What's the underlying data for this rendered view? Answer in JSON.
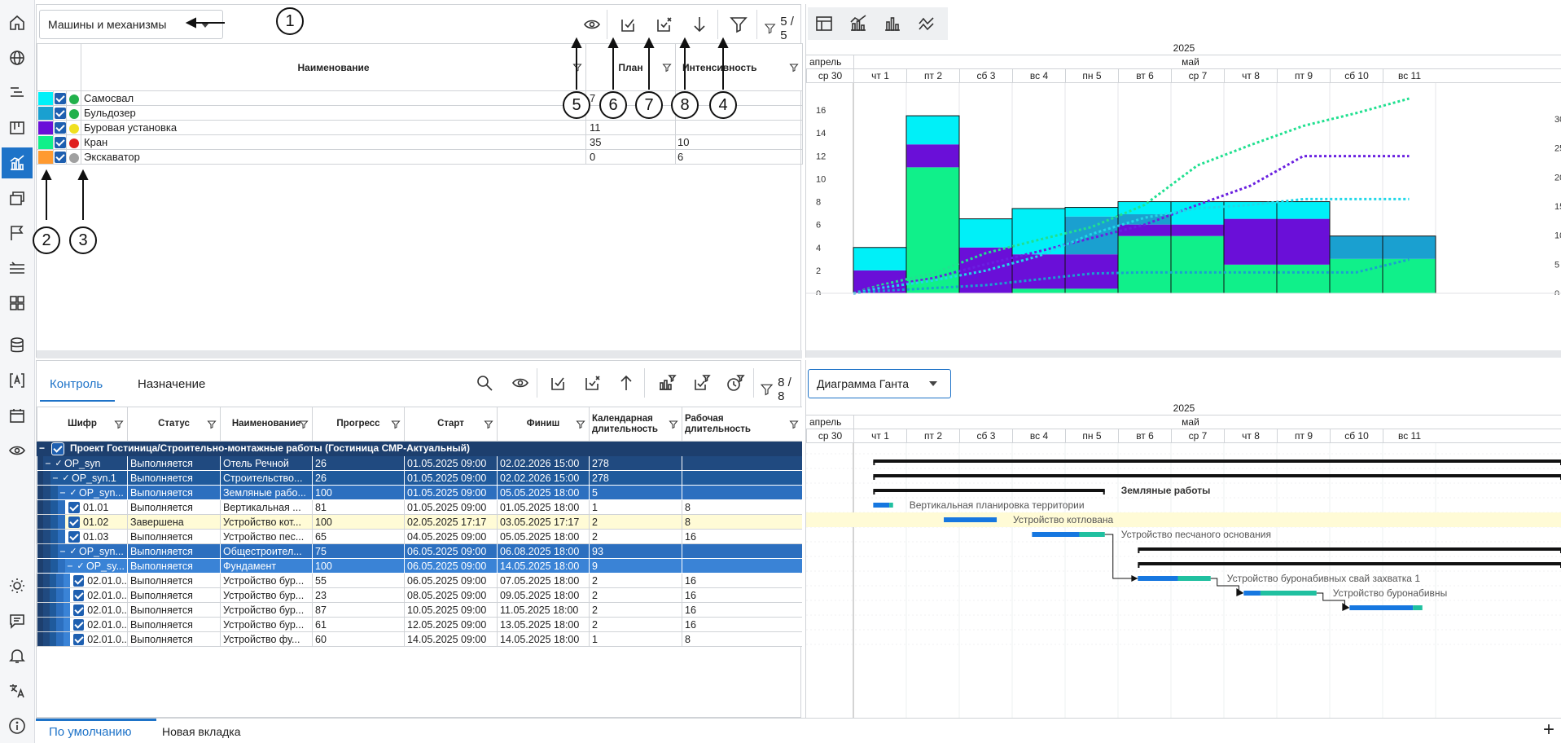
{
  "sidebar": {
    "icons": [
      "home-icon",
      "globe-icon",
      "list-tree-icon",
      "board-icon",
      "chart-analysis-icon",
      "windows-icon",
      "flag-icon",
      "lines-icon",
      "grid-icon",
      "database-icon",
      "text-bracket-icon",
      "calendar-icon",
      "eye-icon",
      "sun-icon",
      "comment-icon",
      "bell-icon",
      "translate-icon",
      "info-icon"
    ]
  },
  "resources": {
    "dropdown_value": "Машины и механизмы",
    "filter_count": "5 / 5",
    "headers": {
      "name": "Наименование",
      "plan": "План",
      "intensity": "Интенсивность"
    },
    "rows": [
      {
        "color": "#00f0f8",
        "status": "#22b14c",
        "name": "Самосвал",
        "plan": "7",
        "intensity": "8"
      },
      {
        "color": "#1aa0d0",
        "status": "#22b14c",
        "name": "Бульдозер",
        "plan": "",
        "intensity": "9"
      },
      {
        "color": "#6a0fd8",
        "status": "#f0e020",
        "name": "Буровая установка",
        "plan": "11",
        "intensity": ""
      },
      {
        "color": "#10f08a",
        "status": "#e02020",
        "name": "Кран",
        "plan": "35",
        "intensity": "10"
      },
      {
        "color": "#ff9a30",
        "status": "#a0a0a0",
        "name": "Экскаватор",
        "plan": "0",
        "intensity": "6"
      }
    ]
  },
  "callouts": [
    "1",
    "2",
    "3",
    "4",
    "5",
    "6",
    "7",
    "8"
  ],
  "timeline": {
    "year": "2025",
    "prev_month": "апрель",
    "month": "май",
    "days": [
      "ср 30",
      "чт 1",
      "пт 2",
      "сб 3",
      "вс 4",
      "пн 5",
      "вт 6",
      "ср 7",
      "чт 8",
      "пт 9",
      "сб 10",
      "вс 11"
    ]
  },
  "chart_data": {
    "type": "bar",
    "categories": [
      "ср 30",
      "чт 1",
      "пт 2",
      "сб 3",
      "вс 4",
      "пн 5",
      "вт 6",
      "ср 7",
      "чт 8",
      "пт 9",
      "сб 10",
      "вс 11"
    ],
    "series": [
      {
        "color": "#10f08a",
        "values": [
          0,
          0,
          11,
          0,
          0.4,
          0.4,
          5,
          5,
          2.5,
          2.5,
          3,
          3
        ]
      },
      {
        "color": "#6a0fd8",
        "values": [
          0,
          2,
          2,
          4,
          3,
          3,
          1,
          1,
          4,
          4,
          0,
          0
        ]
      },
      {
        "color": "#1aa0d0",
        "values": [
          0,
          0,
          0,
          0,
          0,
          3.3,
          0.9,
          0,
          0,
          0,
          2,
          2
        ]
      },
      {
        "color": "#00f0f8",
        "values": [
          0,
          2,
          2.5,
          2.5,
          4,
          0.8,
          1.1,
          2,
          1.5,
          1.5,
          0,
          0
        ]
      }
    ],
    "cumulative": [
      {
        "color": "#20e090",
        "values": [
          0,
          1.4,
          3.4,
          6.9,
          9.2,
          11.4,
          15.2,
          22,
          25.5,
          28.8,
          31,
          33.5
        ]
      },
      {
        "color": "#6a20e0",
        "values": [
          0,
          1.1,
          2.6,
          5,
          7.2,
          9.5,
          11.8,
          15.2,
          18.5,
          23.6,
          23.6,
          23.6
        ]
      },
      {
        "color": "#20d8e8",
        "values": [
          0,
          0.9,
          2.2,
          3.9,
          6.4,
          10.2,
          13,
          14.6,
          15.2,
          16.2,
          16.2,
          16.2
        ]
      },
      {
        "color": "#1aa0d0",
        "values": [
          0,
          0.4,
          0.9,
          1.4,
          2.4,
          3.4,
          3.6,
          3.6,
          3.6,
          3.6,
          3.6,
          5.8
        ]
      }
    ],
    "ylim": [
      0,
      17
    ],
    "y_ticks": [
      "0",
      "2",
      "4",
      "6",
      "8",
      "10",
      "12",
      "14",
      "16"
    ],
    "y2lim": [
      0,
      33.5
    ],
    "y2_ticks": [
      "0",
      "5",
      "10",
      "15",
      "20",
      "25",
      "30"
    ]
  },
  "works": {
    "tabs": [
      "Контроль",
      "Назначение"
    ],
    "filter_count": "8 / 8",
    "headers": [
      "Шифр",
      "Статус",
      "Наименование",
      "Прогресс",
      "Старт",
      "Финиш",
      "Календарная длительность",
      "Рабочая длительность"
    ],
    "rows": [
      {
        "level": 0,
        "type": "project",
        "code": "Проект Гостиница/Строительно-монтажные работы (Гостиница СМР-Актуальный)",
        "status": "",
        "name": "",
        "progress": "",
        "start": "",
        "finish": "",
        "cal": "",
        "work": ""
      },
      {
        "level": 1,
        "type": "group1",
        "code": "OP_syn",
        "status": "Выполняется",
        "name": "Отель Речной",
        "progress": "26",
        "start": "01.05.2025 09:00",
        "finish": "02.02.2026 15:00",
        "cal": "278",
        "work": ""
      },
      {
        "level": 2,
        "type": "group2",
        "code": "OP_syn.1",
        "status": "Выполняется",
        "name": "Строительство...",
        "progress": "26",
        "start": "01.05.2025 09:00",
        "finish": "02.02.2026 15:00",
        "cal": "278",
        "work": ""
      },
      {
        "level": 3,
        "type": "group3",
        "code": "OP_syn...",
        "status": "Выполняется",
        "name": "Земляные рабо...",
        "progress": "100",
        "start": "01.05.2025 09:00",
        "finish": "05.05.2025 18:00",
        "cal": "5",
        "work": ""
      },
      {
        "level": 4,
        "type": "task",
        "code": "01.01",
        "status": "Выполняется",
        "name": "Вертикальная ...",
        "progress": "81",
        "start": "01.05.2025 09:00",
        "finish": "01.05.2025 18:00",
        "cal": "1",
        "work": "8"
      },
      {
        "level": 4,
        "type": "done",
        "code": "01.02",
        "status": "Завершена",
        "name": "Устройство кот...",
        "progress": "100",
        "start": "02.05.2025 17:17",
        "finish": "03.05.2025 17:17",
        "cal": "2",
        "work": "8"
      },
      {
        "level": 4,
        "type": "task",
        "code": "01.03",
        "status": "Выполняется",
        "name": "Устройство пес...",
        "progress": "65",
        "start": "04.05.2025 09:00",
        "finish": "05.05.2025 18:00",
        "cal": "2",
        "work": "16"
      },
      {
        "level": 3,
        "type": "group3",
        "code": "OP_syn...",
        "status": "Выполняется",
        "name": "Общестроител...",
        "progress": "75",
        "start": "06.05.2025 09:00",
        "finish": "06.08.2025 18:00",
        "cal": "93",
        "work": ""
      },
      {
        "level": 4,
        "type": "group4",
        "code": "OP_sy...",
        "status": "Выполняется",
        "name": "Фундамент",
        "progress": "100",
        "start": "06.05.2025 09:00",
        "finish": "14.05.2025 18:00",
        "cal": "9",
        "work": ""
      },
      {
        "level": 5,
        "type": "task",
        "code": "02.01.0...",
        "status": "Выполняется",
        "name": "Устройство бур...",
        "progress": "55",
        "start": "06.05.2025 09:00",
        "finish": "07.05.2025 18:00",
        "cal": "2",
        "work": "16"
      },
      {
        "level": 5,
        "type": "task",
        "code": "02.01.0...",
        "status": "Выполняется",
        "name": "Устройство бур...",
        "progress": "23",
        "start": "08.05.2025 09:00",
        "finish": "09.05.2025 18:00",
        "cal": "2",
        "work": "16"
      },
      {
        "level": 5,
        "type": "task",
        "code": "02.01.0...",
        "status": "Выполняется",
        "name": "Устройство бур...",
        "progress": "87",
        "start": "10.05.2025 09:00",
        "finish": "11.05.2025 18:00",
        "cal": "2",
        "work": "16"
      },
      {
        "level": 5,
        "type": "task",
        "code": "02.01.0...",
        "status": "Выполняется",
        "name": "Устройство бур...",
        "progress": "61",
        "start": "12.05.2025 09:00",
        "finish": "13.05.2025 18:00",
        "cal": "2",
        "work": "16"
      },
      {
        "level": 5,
        "type": "task",
        "code": "02.01.0...",
        "status": "Выполняется",
        "name": "Устройство фу...",
        "progress": "60",
        "start": "14.05.2025 09:00",
        "finish": "14.05.2025 18:00",
        "cal": "1",
        "work": "8"
      }
    ]
  },
  "gantt": {
    "dropdown_value": "Диаграмма Ганта",
    "labels": {
      "earth": "Земляные работы",
      "r4": "Вертикальная планировка территории",
      "r5": "Устройство котлована",
      "r6": "Устройство песчаного основания",
      "r9": "Устройство буронабивных свай захватка 1",
      "r10": "Устройство буронабивны"
    }
  },
  "bottom_tabs": [
    "По умолчанию",
    "Новая вкладка"
  ]
}
